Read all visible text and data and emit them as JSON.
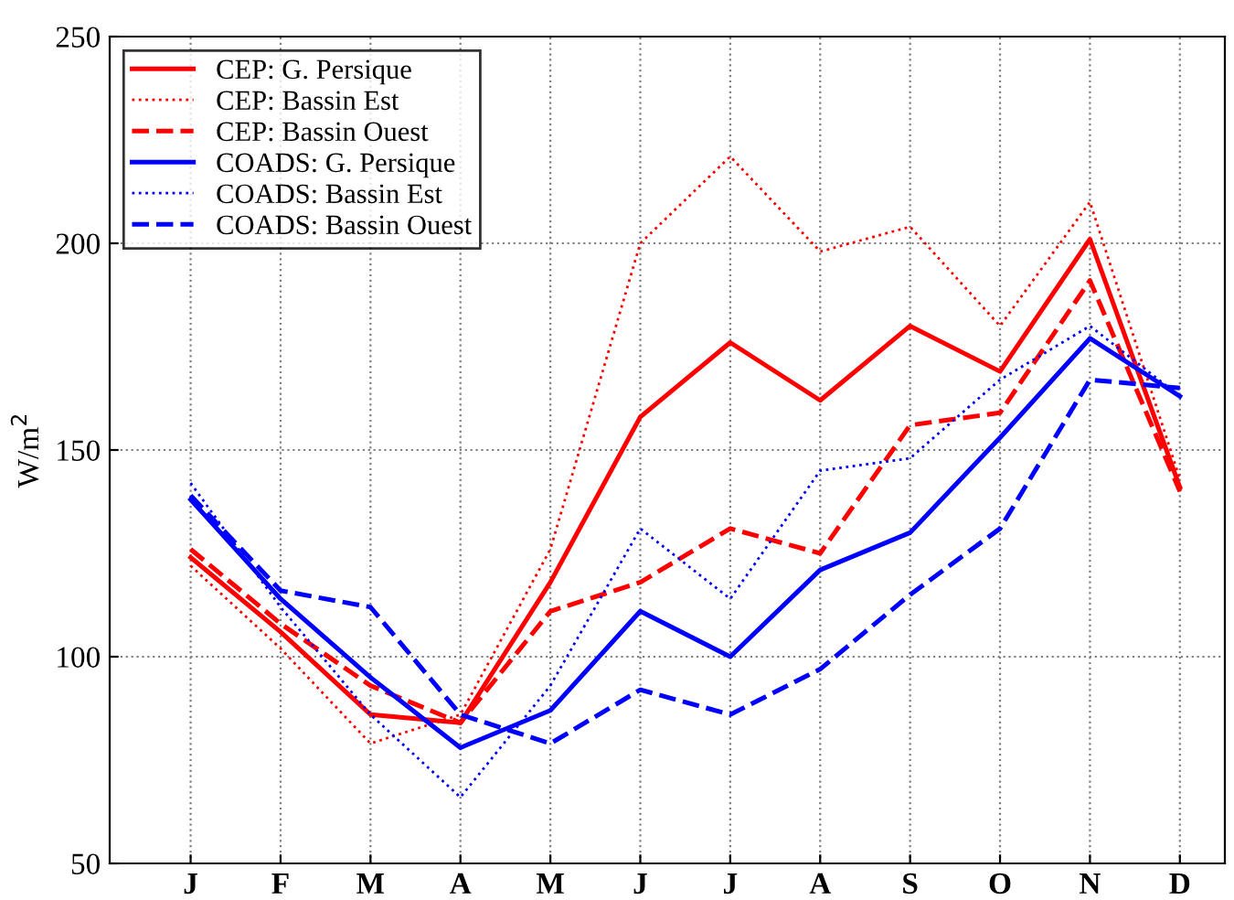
{
  "chart_data": {
    "type": "line",
    "ylabel": "W/m$^{2}$",
    "categories": [
      "J",
      "F",
      "M",
      "A",
      "M",
      "J",
      "J",
      "A",
      "S",
      "O",
      "N",
      "D"
    ],
    "ylim": [
      50,
      250
    ],
    "yticks": [
      50,
      100,
      150,
      200,
      250
    ],
    "grid": true,
    "legend": "top left",
    "marker": "none",
    "series": [
      {
        "name": "CEP: G. Persique",
        "color": "#ff0000",
        "line_style": "solid",
        "values": [
          124,
          106,
          86,
          84,
          118,
          158,
          176,
          162,
          180,
          169,
          201,
          141
        ]
      },
      {
        "name": "CEP: Bassin Est",
        "color": "#ff0000",
        "line_style": "dotted",
        "values": [
          122,
          102,
          79,
          86,
          126,
          200,
          221,
          198,
          204,
          180,
          210,
          143
        ]
      },
      {
        "name": "CEP: Bassin Ouest",
        "color": "#ff0000",
        "line_style": "dashed",
        "values": [
          126,
          108,
          93,
          84,
          111,
          118,
          131,
          125,
          156,
          159,
          191,
          140
        ]
      },
      {
        "name": "COADS: G. Persique",
        "color": "#0000ff",
        "line_style": "solid",
        "values": [
          138,
          114,
          95,
          78,
          87,
          111,
          100,
          121,
          130,
          153,
          177,
          163
        ]
      },
      {
        "name": "COADS: Bassin Est",
        "color": "#0000ff",
        "line_style": "dotted",
        "values": [
          142,
          112,
          86,
          66,
          93,
          131,
          114,
          145,
          148,
          167,
          180,
          163
        ]
      },
      {
        "name": "COADS: Bassin Ouest",
        "color": "#0000ff",
        "line_style": "dashed",
        "values": [
          139,
          116,
          112,
          86,
          79,
          92,
          86,
          97,
          115,
          131,
          167,
          165
        ]
      }
    ]
  }
}
